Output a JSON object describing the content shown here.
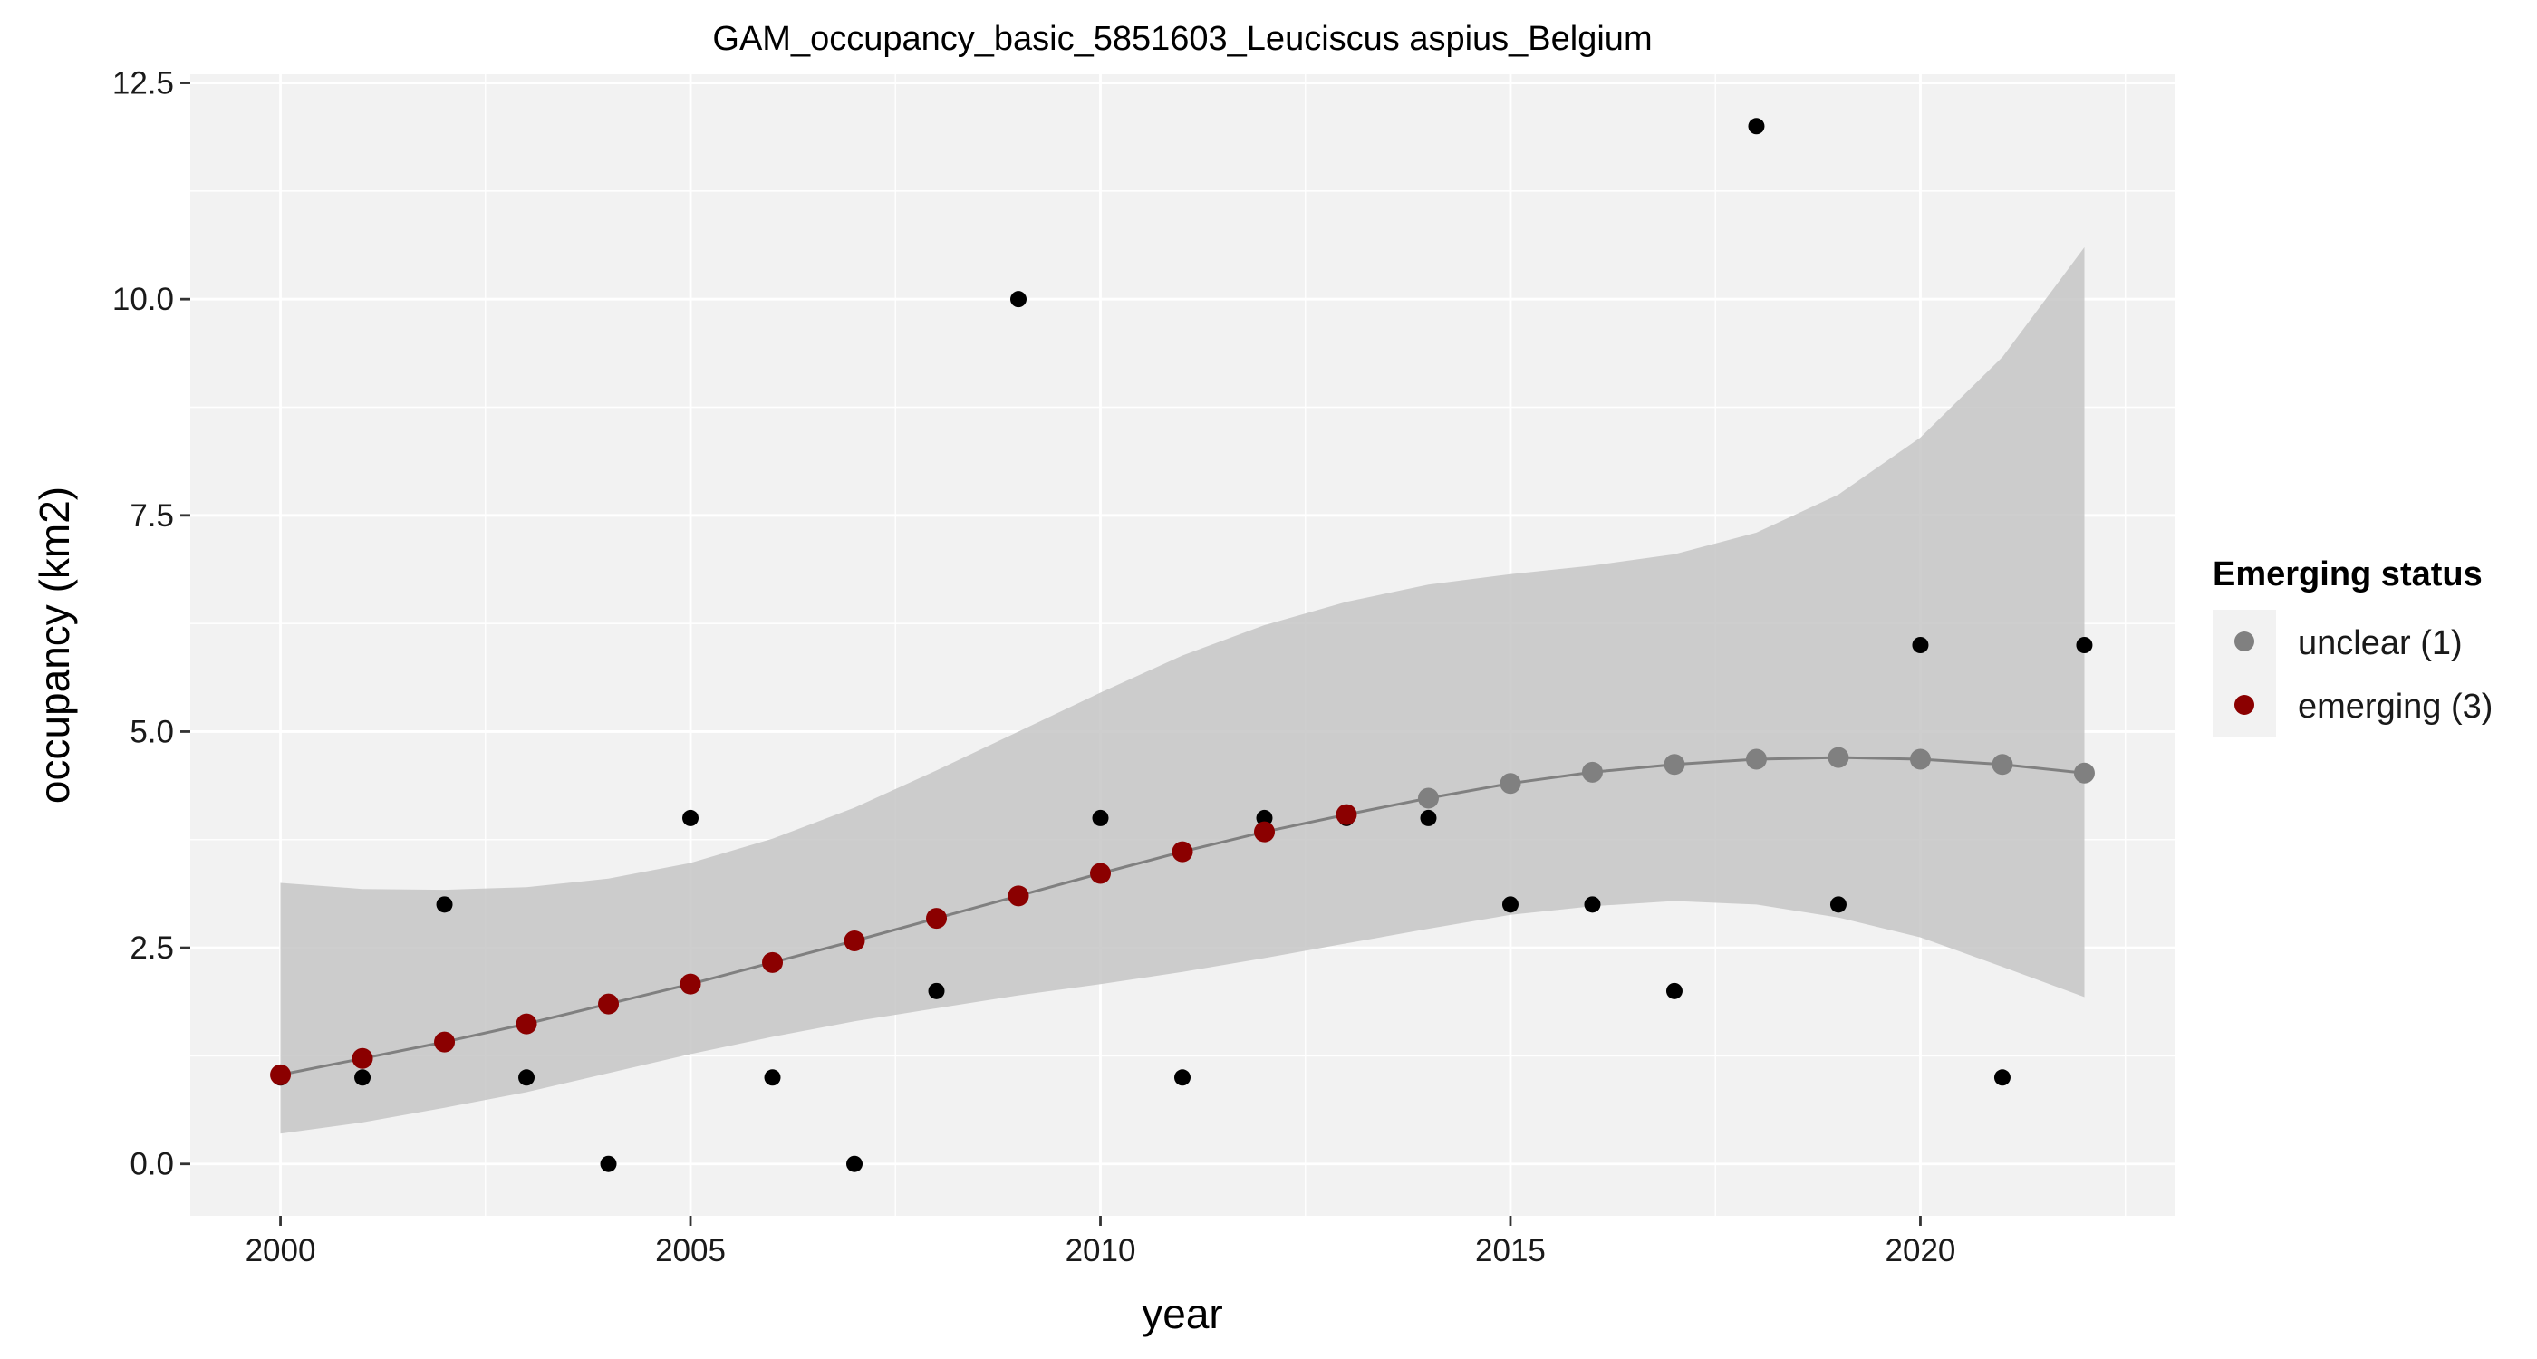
{
  "chart_data": {
    "type": "scatter",
    "title": "GAM_occupancy_basic_5851603_Leuciscus aspius_Belgium",
    "xlabel": "year",
    "ylabel": "occupancy (km2)",
    "xlim": [
      1998.9,
      2023.1
    ],
    "ylim": [
      -0.6,
      12.6
    ],
    "x_ticks": [
      2000,
      2005,
      2010,
      2015,
      2020
    ],
    "x_tick_labels": [
      "2000",
      "2005",
      "2010",
      "2015",
      "2020"
    ],
    "y_ticks": [
      0,
      2.5,
      5,
      7.5,
      10,
      12.5
    ],
    "y_tick_labels": [
      "0.0",
      "2.5",
      "5.0",
      "7.5",
      "10.0",
      "12.5"
    ],
    "grid": true,
    "legend": {
      "title": "Emerging status",
      "placement": "right",
      "entries": [
        {
          "label": "unclear (1)",
          "color": "#808080"
        },
        {
          "label": "emerging (3)",
          "color": "#8b0000"
        }
      ]
    },
    "observed": {
      "color": "#000000",
      "x": [
        2000,
        2001,
        2002,
        2003,
        2004,
        2005,
        2006,
        2007,
        2008,
        2009,
        2010,
        2011,
        2012,
        2013,
        2014,
        2015,
        2016,
        2017,
        2018,
        2019,
        2020,
        2021,
        2022
      ],
      "y": [
        1,
        1,
        3,
        1,
        0,
        4,
        1,
        0,
        2,
        10,
        4,
        1,
        4,
        4,
        4,
        3,
        3,
        2,
        12,
        3,
        6,
        1,
        6
      ]
    },
    "fit": {
      "line_color": "#808080",
      "ribbon_color": "#c6c6c6",
      "x": [
        2000,
        2001,
        2002,
        2003,
        2004,
        2005,
        2006,
        2007,
        2008,
        2009,
        2010,
        2011,
        2012,
        2013,
        2014,
        2015,
        2016,
        2017,
        2018,
        2019,
        2020,
        2021,
        2022
      ],
      "y": [
        1.03,
        1.22,
        1.41,
        1.62,
        1.85,
        2.08,
        2.33,
        2.58,
        2.84,
        3.1,
        3.36,
        3.61,
        3.84,
        4.04,
        4.23,
        4.4,
        4.53,
        4.62,
        4.68,
        4.7,
        4.68,
        4.62,
        4.52
      ],
      "lower": [
        0.35,
        0.48,
        0.65,
        0.83,
        1.05,
        1.27,
        1.47,
        1.65,
        1.8,
        1.95,
        2.08,
        2.22,
        2.38,
        2.55,
        2.72,
        2.88,
        2.98,
        3.04,
        3.0,
        2.85,
        2.62,
        2.28,
        1.93
      ],
      "upper": [
        3.25,
        3.18,
        3.17,
        3.2,
        3.3,
        3.48,
        3.76,
        4.12,
        4.55,
        5.0,
        5.45,
        5.88,
        6.23,
        6.5,
        6.7,
        6.82,
        6.92,
        7.05,
        7.3,
        7.74,
        8.4,
        9.33,
        10.6
      ],
      "status": [
        "emerging",
        "emerging",
        "emerging",
        "emerging",
        "emerging",
        "emerging",
        "emerging",
        "emerging",
        "emerging",
        "emerging",
        "emerging",
        "emerging",
        "emerging",
        "emerging",
        "unclear",
        "unclear",
        "unclear",
        "unclear",
        "unclear",
        "unclear",
        "unclear",
        "unclear",
        "unclear"
      ]
    },
    "colors": {
      "panel_background": "#f2f2f2",
      "grid": "#ffffff",
      "text": "#000000",
      "tick_text": "#1a1a1a",
      "emerging": "#8b0000",
      "unclear": "#808080",
      "legend_key_background": "#f2f2f2"
    }
  }
}
